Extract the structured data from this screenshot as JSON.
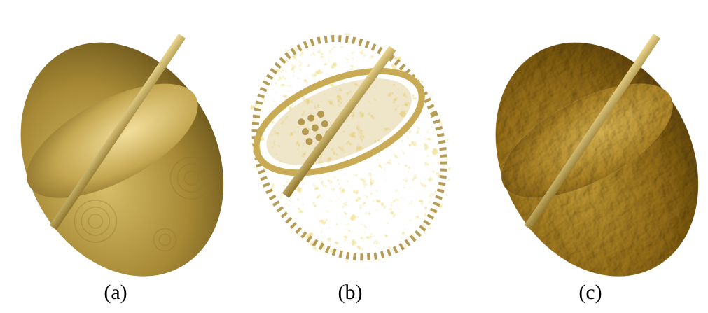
{
  "panels": [
    {
      "id": "a",
      "caption": "(a)"
    },
    {
      "id": "b",
      "caption": "(b)"
    },
    {
      "id": "c",
      "caption": "(c)"
    }
  ],
  "colors": {
    "surface_light": "#e8d28a",
    "surface_mid": "#b89a45",
    "surface_dark": "#5e4a15",
    "background": "#ffffff"
  }
}
